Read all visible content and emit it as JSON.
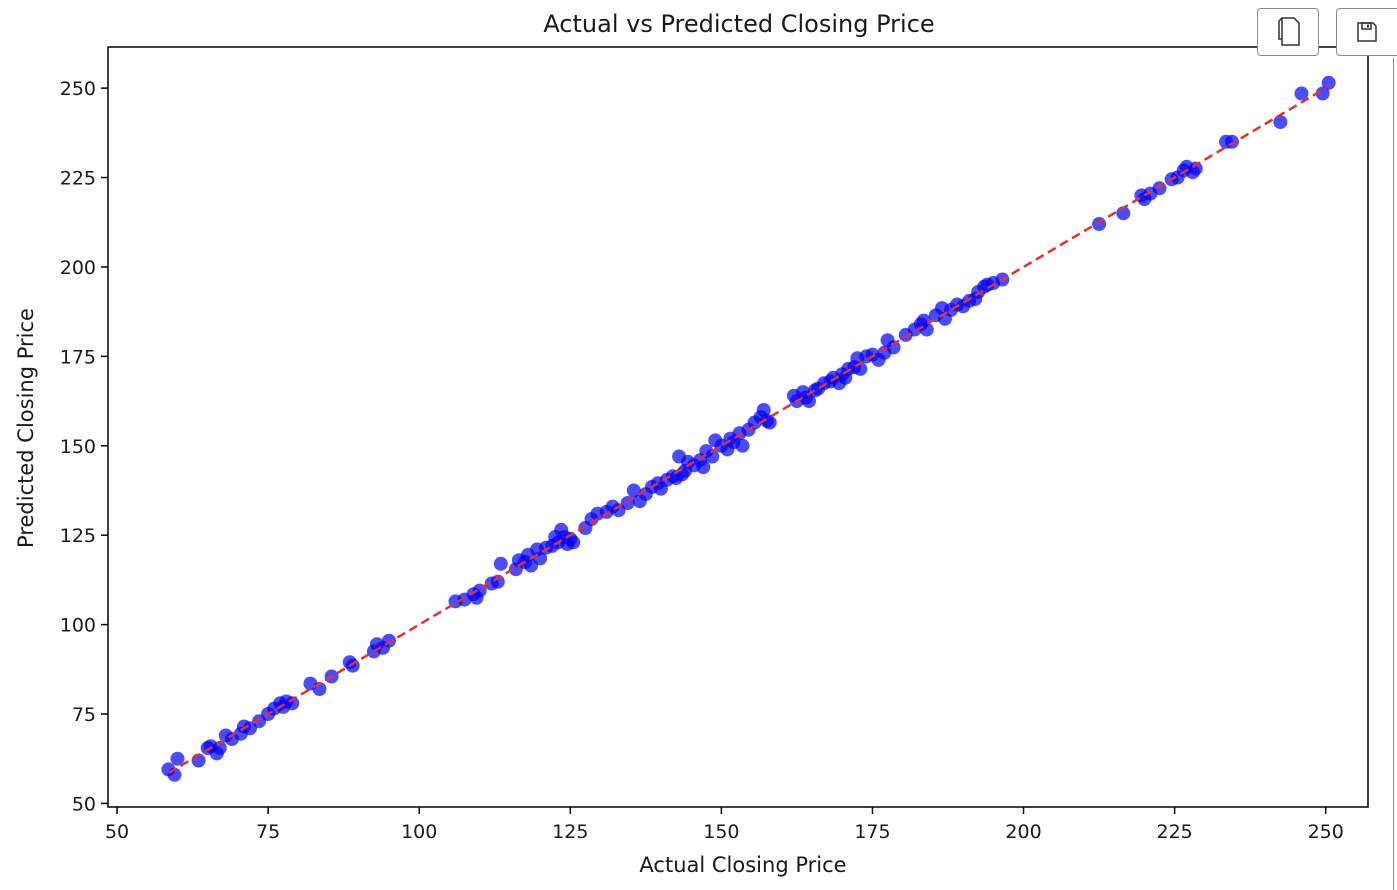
{
  "toolbar": {
    "copy_icon": "copy-icon",
    "save_icon": "save-disk-icon"
  },
  "colors": {
    "points": "#0000ff",
    "fit_line": "#e8302b",
    "axes": "#000000",
    "text": "#1a1a1a"
  },
  "chart_data": {
    "type": "scatter",
    "title": "Actual vs Predicted Closing Price",
    "xlabel": "Actual Closing Price",
    "ylabel": "Predicted Closing Price",
    "xlim": [
      48.5,
      257
    ],
    "ylim": [
      49,
      261.5
    ],
    "xticks": [
      50,
      75,
      100,
      125,
      150,
      175,
      200,
      225,
      250
    ],
    "yticks": [
      50,
      75,
      100,
      125,
      150,
      175,
      200,
      225,
      250
    ],
    "grid": false,
    "reference_line": {
      "style": "dashed",
      "from": [
        58.5,
        58.5
      ],
      "to": [
        250.5,
        250.5
      ]
    },
    "series": [
      {
        "marker": "circle",
        "alpha": 0.7,
        "points": [
          [
            58.5,
            59.5
          ],
          [
            59.5,
            58
          ],
          [
            60,
            62.5
          ],
          [
            63.5,
            62
          ],
          [
            65,
            65.5
          ],
          [
            65.5,
            66
          ],
          [
            66.5,
            64
          ],
          [
            67,
            65.5
          ],
          [
            68,
            69
          ],
          [
            69,
            68
          ],
          [
            70.5,
            69.5
          ],
          [
            71,
            71.5
          ],
          [
            72,
            71
          ],
          [
            73.5,
            73
          ],
          [
            75,
            75
          ],
          [
            76,
            76.5
          ],
          [
            77,
            78
          ],
          [
            77.5,
            77
          ],
          [
            78,
            78.5
          ],
          [
            79,
            78
          ],
          [
            82,
            83.5
          ],
          [
            83.5,
            82
          ],
          [
            85.5,
            85.5
          ],
          [
            88.5,
            89.5
          ],
          [
            89,
            88.5
          ],
          [
            92.5,
            92.5
          ],
          [
            93,
            94.5
          ],
          [
            94,
            93.5
          ],
          [
            95,
            95.5
          ],
          [
            106,
            106.5
          ],
          [
            107.5,
            107
          ],
          [
            109,
            108.5
          ],
          [
            109.5,
            107.5
          ],
          [
            110,
            109.5
          ],
          [
            112,
            111.5
          ],
          [
            113,
            112
          ],
          [
            113.5,
            117
          ],
          [
            116,
            115.5
          ],
          [
            116.5,
            118
          ],
          [
            117.5,
            117.5
          ],
          [
            118,
            119.5
          ],
          [
            118.5,
            116.5
          ],
          [
            119.5,
            121
          ],
          [
            120,
            118.5
          ],
          [
            121,
            121.5
          ],
          [
            122,
            122
          ],
          [
            122.5,
            124.5
          ],
          [
            123,
            123
          ],
          [
            123.5,
            126.5
          ],
          [
            124,
            124.5
          ],
          [
            124.5,
            122.5
          ],
          [
            125,
            124
          ],
          [
            125.5,
            123
          ],
          [
            127.5,
            127
          ],
          [
            128.5,
            129.5
          ],
          [
            129.5,
            131
          ],
          [
            131,
            131.5
          ],
          [
            132,
            133
          ],
          [
            133,
            132
          ],
          [
            134.5,
            134
          ],
          [
            135.5,
            137.5
          ],
          [
            136.5,
            134.5
          ],
          [
            137.5,
            136.5
          ],
          [
            138.5,
            138.5
          ],
          [
            139.5,
            139.5
          ],
          [
            140,
            138
          ],
          [
            141,
            140.5
          ],
          [
            142,
            141.5
          ],
          [
            142.5,
            141
          ],
          [
            143,
            147
          ],
          [
            143.5,
            142
          ],
          [
            144,
            143
          ],
          [
            144.5,
            145.5
          ],
          [
            145.5,
            144.5
          ],
          [
            146.5,
            146
          ],
          [
            147,
            144
          ],
          [
            147.5,
            148.5
          ],
          [
            148.5,
            147
          ],
          [
            149,
            151.5
          ],
          [
            150,
            150
          ],
          [
            151,
            149
          ],
          [
            151.5,
            152
          ],
          [
            152,
            151
          ],
          [
            153,
            153.5
          ],
          [
            153.5,
            150
          ],
          [
            154.5,
            154.5
          ],
          [
            155.5,
            156.5
          ],
          [
            156.5,
            158
          ],
          [
            157,
            160
          ],
          [
            157.5,
            157
          ],
          [
            158,
            156.5
          ],
          [
            162,
            164
          ],
          [
            162.5,
            162.5
          ],
          [
            163.5,
            165
          ],
          [
            164,
            163.5
          ],
          [
            164.5,
            162.5
          ],
          [
            165.5,
            165.5
          ],
          [
            166,
            166
          ],
          [
            167,
            167.5
          ],
          [
            168,
            168
          ],
          [
            168.5,
            169
          ],
          [
            169.5,
            167.5
          ],
          [
            170,
            170
          ],
          [
            170.5,
            169
          ],
          [
            171,
            171.5
          ],
          [
            172,
            172
          ],
          [
            172.5,
            174.5
          ],
          [
            173,
            171.5
          ],
          [
            174,
            175
          ],
          [
            175,
            175.5
          ],
          [
            176,
            174
          ],
          [
            177,
            176
          ],
          [
            177.5,
            179.5
          ],
          [
            178.5,
            177.5
          ],
          [
            180.5,
            181
          ],
          [
            182,
            182.5
          ],
          [
            183,
            184
          ],
          [
            183.5,
            185
          ],
          [
            184,
            182.5
          ],
          [
            185.5,
            186.5
          ],
          [
            186.5,
            188.5
          ],
          [
            187,
            185.5
          ],
          [
            188,
            188
          ],
          [
            189,
            189.5
          ],
          [
            190,
            189
          ],
          [
            191,
            190.5
          ],
          [
            192,
            191
          ],
          [
            192.5,
            193
          ],
          [
            193.5,
            194.5
          ],
          [
            194,
            195
          ],
          [
            195,
            195.5
          ],
          [
            196.5,
            196.5
          ],
          [
            212.5,
            212
          ],
          [
            216.5,
            215
          ],
          [
            219.5,
            220
          ],
          [
            220,
            219
          ],
          [
            221,
            220.5
          ],
          [
            222.5,
            222
          ],
          [
            224.5,
            224.5
          ],
          [
            225.5,
            225
          ],
          [
            226.5,
            227
          ],
          [
            227,
            228
          ],
          [
            228,
            226.5
          ],
          [
            228.5,
            227.5
          ],
          [
            233.5,
            235
          ],
          [
            234.5,
            235
          ],
          [
            242.5,
            240.5
          ],
          [
            246,
            248.5
          ],
          [
            249.5,
            248.5
          ],
          [
            250.5,
            251.5
          ]
        ]
      }
    ]
  }
}
